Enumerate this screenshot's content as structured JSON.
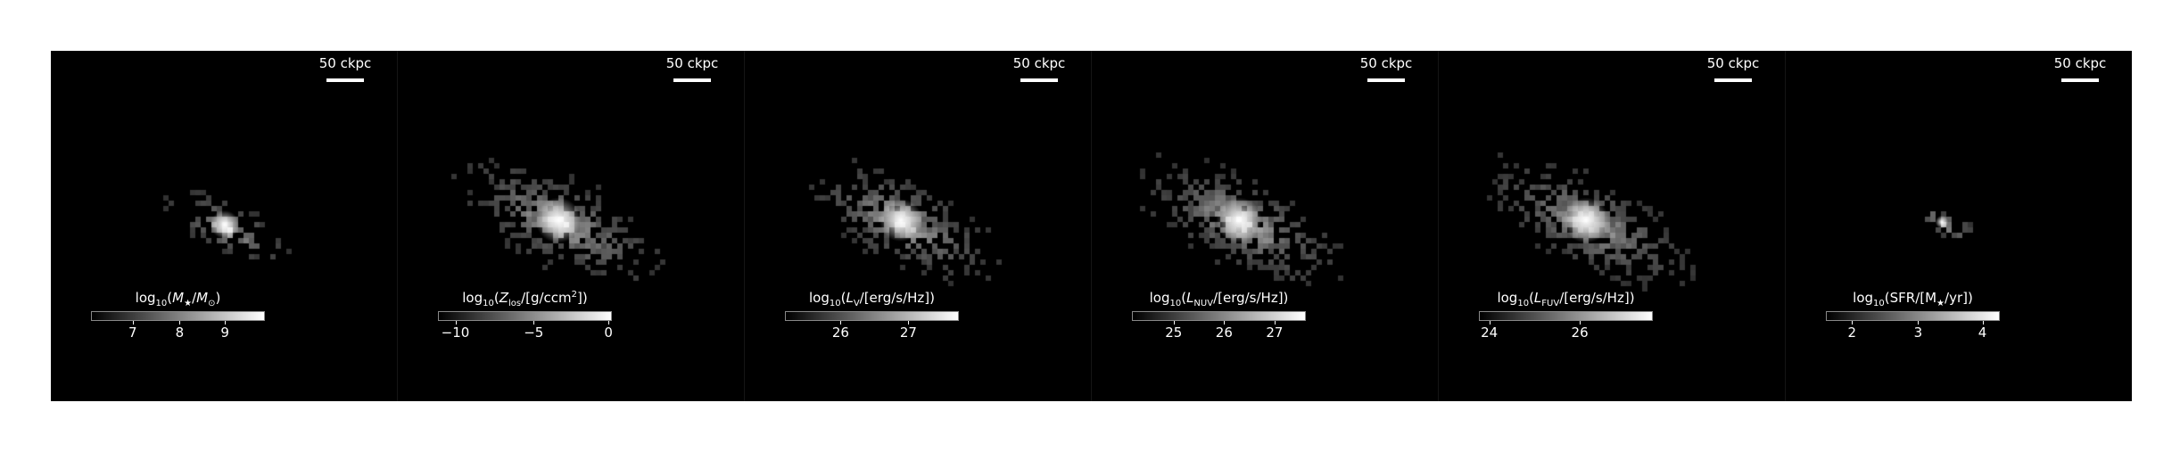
{
  "scale_text": "50 ckpc",
  "panels": [
    {
      "colorbar_label_html": "log<sub>10</sub>(<i>M</i><sub>★</sub>/<i>M</i><sub>⊙</sub>)",
      "ticks": [
        {
          "text": "7",
          "frac": 0.24
        },
        {
          "text": "8",
          "frac": 0.51
        },
        {
          "text": "9",
          "frac": 0.77
        }
      ]
    },
    {
      "colorbar_label_html": "log<sub>10</sub>(<i>Z</i><sub>los</sub>/[g/ccm<sup>2</sup>])",
      "ticks": [
        {
          "text": "−10",
          "frac": 0.1
        },
        {
          "text": "−5",
          "frac": 0.55
        },
        {
          "text": "0",
          "frac": 0.98
        }
      ]
    },
    {
      "colorbar_label_html": "log<sub>10</sub>(<i>L</i><sub>V</sub>/[erg/s/Hz])",
      "ticks": [
        {
          "text": "26",
          "frac": 0.32
        },
        {
          "text": "27",
          "frac": 0.71
        }
      ]
    },
    {
      "colorbar_label_html": "log<sub>10</sub>(<i>L</i><sub>NUV</sub>/[erg/s/Hz])",
      "ticks": [
        {
          "text": "25",
          "frac": 0.24
        },
        {
          "text": "26",
          "frac": 0.53
        },
        {
          "text": "27",
          "frac": 0.82
        }
      ]
    },
    {
      "colorbar_label_html": "log<sub>10</sub>(<i>L</i><sub>FUV</sub>/[erg/s/Hz])",
      "ticks": [
        {
          "text": "24",
          "frac": 0.06
        },
        {
          "text": "26",
          "frac": 0.58
        }
      ]
    },
    {
      "colorbar_label_html": "log<sub>10</sub>(SFR/[M<sub>★</sub>/yr])",
      "ticks": [
        {
          "text": "2",
          "frac": 0.15
        },
        {
          "text": "3",
          "frac": 0.53
        },
        {
          "text": "4",
          "frac": 0.9
        }
      ]
    }
  ]
}
